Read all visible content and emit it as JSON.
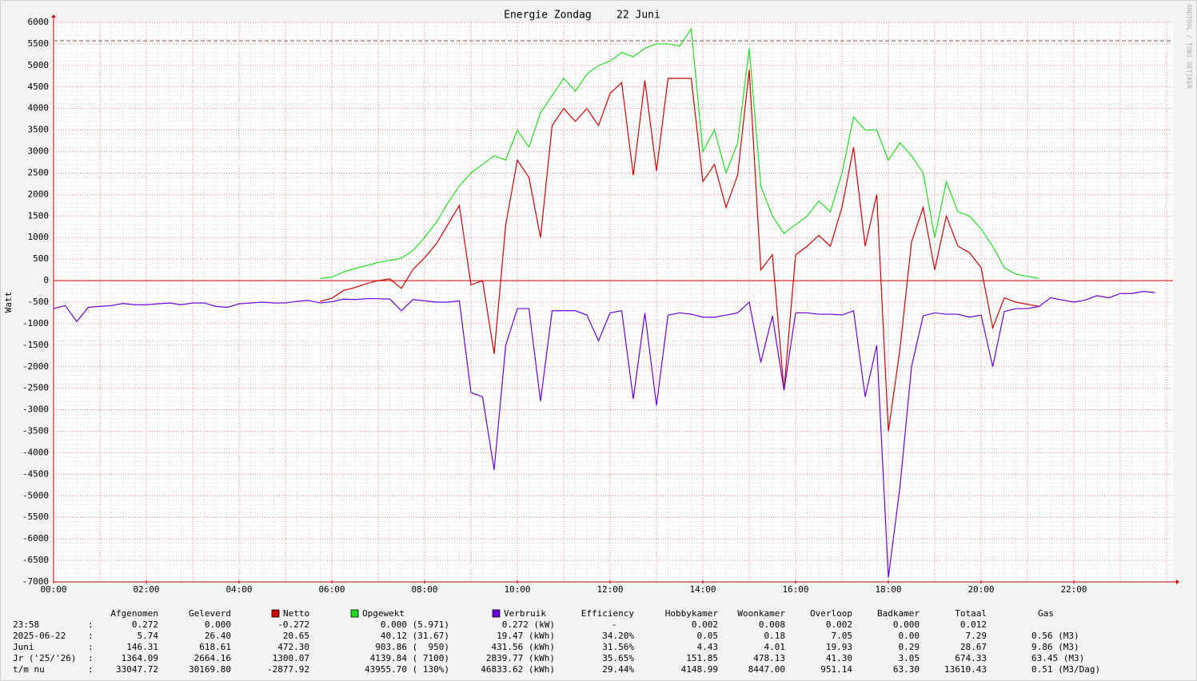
{
  "chart_data": {
    "type": "line",
    "title": "Energie Zondag    22 Juni",
    "y_label": "Watt",
    "watermark": "RRDTOOL / TOBI OETIKER",
    "x": [
      0,
      0.25,
      0.5,
      0.75,
      1,
      1.25,
      1.5,
      1.75,
      2,
      2.25,
      2.5,
      2.75,
      3,
      3.25,
      3.5,
      3.75,
      4,
      4.25,
      4.5,
      4.75,
      5,
      5.25,
      5.5,
      5.75,
      6,
      6.25,
      6.5,
      6.75,
      7,
      7.25,
      7.5,
      7.75,
      8,
      8.25,
      8.5,
      8.75,
      9,
      9.25,
      9.5,
      9.75,
      10,
      10.25,
      10.5,
      10.75,
      11,
      11.25,
      11.5,
      11.75,
      12,
      12.25,
      12.5,
      12.75,
      13,
      13.25,
      13.5,
      13.75,
      14,
      14.25,
      14.5,
      14.75,
      15,
      15.25,
      15.5,
      15.75,
      16,
      16.25,
      16.5,
      16.75,
      17,
      17.25,
      17.5,
      17.75,
      18,
      18.25,
      18.5,
      18.75,
      19,
      19.25,
      19.5,
      19.75,
      20,
      20.25,
      20.5,
      20.75,
      21,
      21.25,
      21.5,
      21.75,
      22,
      22.25,
      22.5,
      22.75,
      23,
      23.25,
      23.5,
      23.75
    ],
    "series": [
      {
        "name": "Netto",
        "color": "#cc0000",
        "values": [
          null,
          null,
          null,
          null,
          null,
          null,
          null,
          null,
          null,
          null,
          null,
          null,
          null,
          null,
          null,
          null,
          null,
          null,
          null,
          null,
          null,
          null,
          null,
          -480,
          -410,
          -230,
          -160,
          -70,
          0,
          40,
          -180,
          260,
          530,
          850,
          1300,
          1750,
          -100,
          0,
          -1700,
          1300,
          2800,
          2400,
          1000,
          3600,
          4000,
          3700,
          4000,
          3600,
          4350,
          4600,
          2450,
          4650,
          2550,
          4700,
          4700,
          4700,
          2300,
          2700,
          1700,
          2450,
          4900,
          250,
          600,
          -2550,
          600,
          800,
          1050,
          800,
          1700,
          3100,
          800,
          2000,
          -3500,
          -1600,
          900,
          1700,
          250,
          1500,
          800,
          650,
          300,
          -1100,
          -400,
          -500,
          -550,
          -600,
          null,
          null,
          null,
          null,
          null,
          null,
          null,
          null,
          null,
          null
        ]
      },
      {
        "name": "Opgewekt",
        "color": "#22dd22",
        "values": [
          null,
          null,
          null,
          null,
          null,
          null,
          null,
          null,
          null,
          null,
          null,
          null,
          null,
          null,
          null,
          null,
          null,
          null,
          null,
          null,
          null,
          null,
          null,
          50,
          80,
          200,
          280,
          350,
          420,
          470,
          520,
          700,
          1000,
          1350,
          1800,
          2200,
          2500,
          2700,
          2900,
          2800,
          3500,
          3100,
          3900,
          4300,
          4700,
          4400,
          4800,
          5000,
          5100,
          5300,
          5200,
          5400,
          5500,
          5500,
          5450,
          5850,
          3000,
          3500,
          2500,
          3200,
          5400,
          2200,
          1500,
          1100,
          1300,
          1500,
          1850,
          1600,
          2500,
          3800,
          3500,
          3500,
          2800,
          3200,
          2900,
          2500,
          1000,
          2300,
          1600,
          1500,
          1200,
          800,
          300,
          150,
          100,
          50,
          null,
          null,
          null,
          null,
          null,
          null,
          null,
          null,
          null,
          null
        ]
      },
      {
        "name": "Verbruik",
        "color": "#6a00d8",
        "values": [
          -650,
          -580,
          -950,
          -620,
          -600,
          -580,
          -530,
          -560,
          -560,
          -540,
          -520,
          -560,
          -520,
          -520,
          -600,
          -620,
          -540,
          -520,
          -500,
          -520,
          -520,
          -480,
          -460,
          -520,
          -490,
          -430,
          -440,
          -420,
          -420,
          -430,
          -700,
          -440,
          -470,
          -500,
          -500,
          -470,
          -2600,
          -2700,
          -4400,
          -1500,
          -650,
          -650,
          -2800,
          -700,
          -700,
          -700,
          -800,
          -1400,
          -750,
          -700,
          -2750,
          -750,
          -2900,
          -800,
          -750,
          -780,
          -850,
          -850,
          -800,
          -750,
          -500,
          -1900,
          -820,
          -2550,
          -750,
          -750,
          -780,
          -780,
          -800,
          -700,
          -2700,
          -1500,
          -6900,
          -4800,
          -2000,
          -820,
          -750,
          -780,
          -780,
          -850,
          -800,
          -2000,
          -720,
          -650,
          -650,
          -600,
          -400,
          -450,
          -500,
          -450,
          -350,
          -400,
          -300,
          -300,
          -250,
          -280
        ]
      }
    ],
    "hrule": 5570,
    "hrule_color": "#8a4a4a",
    "xlim": [
      0,
      24
    ],
    "xticks": [
      {
        "value": 0,
        "label": "00:00"
      },
      {
        "value": 2,
        "label": "02:00"
      },
      {
        "value": 4,
        "label": "04:00"
      },
      {
        "value": 6,
        "label": "06:00"
      },
      {
        "value": 8,
        "label": "08:00"
      },
      {
        "value": 10,
        "label": "10:00"
      },
      {
        "value": 12,
        "label": "12:00"
      },
      {
        "value": 14,
        "label": "14:00"
      },
      {
        "value": 16,
        "label": "16:00"
      },
      {
        "value": 18,
        "label": "18:00"
      },
      {
        "value": 20,
        "label": "20:00"
      },
      {
        "value": 22,
        "label": "22:00"
      }
    ],
    "ylim": [
      -7000,
      6000
    ],
    "yticks": [
      -7000,
      -6500,
      -6000,
      -5500,
      -5000,
      -4500,
      -4000,
      -3500,
      -3000,
      -2500,
      -2000,
      -1500,
      -1000,
      -500,
      0,
      500,
      1000,
      1500,
      2000,
      2500,
      3000,
      3500,
      4000,
      4500,
      5000,
      5500,
      6000
    ],
    "grid": true
  },
  "summary": {
    "columns": [
      "Afgenomen",
      "Geleverd",
      "Efficiency",
      "Hobbykamer",
      "Woonkamer",
      "Overloop",
      "Badkamer",
      "Totaal",
      "Gas"
    ],
    "rows": [
      [
        "23:58",
        ":",
        "0.272",
        "0.000",
        "-0.272",
        "0.000 (5.971)",
        "0.272 (kW)",
        "-",
        "0.002",
        "0.008",
        "0.002",
        "0.000",
        "0.012"
      ],
      [
        "2025-06-22",
        ":",
        "5.74",
        "26.40",
        "20.65",
        "40.12 (31.67)",
        "19.47 (kWh)",
        "34.20%",
        "0.05",
        "0.18",
        "7.05",
        "0.00",
        "7.29",
        "0.56 (M3)"
      ],
      [
        "Juni",
        ":",
        "146.31",
        "618.61",
        "472.30",
        "903.86 (  950)",
        "431.56 (kWh)",
        "31.56%",
        "4.43",
        "4.01",
        "19.93",
        "0.29",
        "28.67",
        "9.86 (M3)"
      ],
      [
        "Jr ('25/'26)",
        ":",
        "1364.09",
        "2664.16",
        "1300.07",
        "4139.84 ( 7100)",
        "2839.77 (kWh)",
        "35.65%",
        "151.85",
        "478.13",
        "41.30",
        "3.05",
        "674.33",
        "63.45 (M3)"
      ],
      [
        "t/m nu",
        ":",
        "33047.72",
        "30169.80",
        "-2877.92",
        "43955.70 ( 130%)",
        "46833.62 (kWh)",
        "29.44%",
        "4148.99",
        "8447.00",
        "951.14",
        "63.30",
        "13610.43",
        "0.51 (M3/Dag)"
      ]
    ]
  }
}
